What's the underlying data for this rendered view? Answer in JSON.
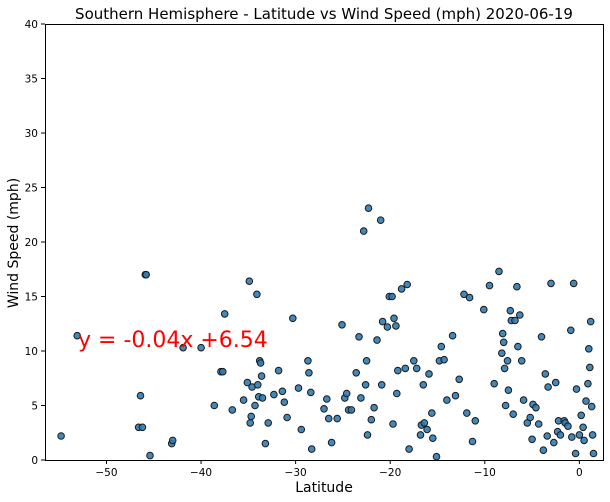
{
  "chart_data": {
    "type": "scatter",
    "title": "Southern Hemisphere - Latitude vs Wind Speed (mph) 2020-06-19",
    "xlabel": "Latitude",
    "ylabel": "Wind Speed (mph)",
    "xlim": [
      -56.5,
      2.5
    ],
    "ylim": [
      0,
      40
    ],
    "xticks": [
      -50,
      -40,
      -30,
      -20,
      -10,
      0
    ],
    "yticks": [
      0,
      5,
      10,
      15,
      20,
      25,
      30,
      35,
      40
    ],
    "grid": false,
    "regression": {
      "equation": "y = -0.04x +6.54",
      "slope": -0.04,
      "intercept": 6.54,
      "color": "#ff0000"
    },
    "point_color": "#2f7bb1",
    "points": [
      [
        -54.8,
        2.2
      ],
      [
        -53.1,
        11.4
      ],
      [
        -46.6,
        3.0
      ],
      [
        -46.4,
        5.9
      ],
      [
        -46.2,
        3.0
      ],
      [
        -45.9,
        17.0
      ],
      [
        -45.8,
        17.0
      ],
      [
        -45.4,
        0.4
      ],
      [
        -43.1,
        1.5
      ],
      [
        -43.0,
        1.8
      ],
      [
        -41.9,
        10.3
      ],
      [
        -40.0,
        10.3
      ],
      [
        -38.6,
        5.0
      ],
      [
        -37.9,
        8.1
      ],
      [
        -37.7,
        8.1
      ],
      [
        -37.5,
        13.4
      ],
      [
        -36.7,
        4.6
      ],
      [
        -35.5,
        5.5
      ],
      [
        -35.1,
        7.1
      ],
      [
        -34.9,
        16.4
      ],
      [
        -34.8,
        3.4
      ],
      [
        -34.7,
        4.0
      ],
      [
        -34.6,
        6.7
      ],
      [
        -34.3,
        5.0
      ],
      [
        -34.1,
        15.2
      ],
      [
        -34.0,
        6.9
      ],
      [
        -33.9,
        5.8
      ],
      [
        -33.8,
        9.1
      ],
      [
        -33.7,
        8.9
      ],
      [
        -33.6,
        7.7
      ],
      [
        -33.5,
        5.7
      ],
      [
        -33.2,
        1.5
      ],
      [
        -32.9,
        3.4
      ],
      [
        -32.3,
        6.0
      ],
      [
        -31.8,
        8.2
      ],
      [
        -31.4,
        6.3
      ],
      [
        -31.2,
        5.3
      ],
      [
        -30.9,
        3.9
      ],
      [
        -30.3,
        13.0
      ],
      [
        -29.7,
        6.6
      ],
      [
        -29.4,
        2.8
      ],
      [
        -28.7,
        9.1
      ],
      [
        -28.6,
        8.0
      ],
      [
        -28.4,
        6.2
      ],
      [
        -28.3,
        1.0
      ],
      [
        -27.0,
        4.7
      ],
      [
        -26.7,
        5.6
      ],
      [
        -26.5,
        3.8
      ],
      [
        -26.2,
        1.6
      ],
      [
        -25.6,
        3.8
      ],
      [
        -25.1,
        12.4
      ],
      [
        -24.8,
        5.7
      ],
      [
        -24.6,
        6.1
      ],
      [
        -24.4,
        4.6
      ],
      [
        -24.1,
        4.6
      ],
      [
        -23.6,
        8.0
      ],
      [
        -23.3,
        11.3
      ],
      [
        -23.1,
        5.7
      ],
      [
        -22.8,
        21.0
      ],
      [
        -22.6,
        6.9
      ],
      [
        -22.5,
        9.1
      ],
      [
        -22.4,
        2.3
      ],
      [
        -22.3,
        23.1
      ],
      [
        -22.0,
        3.7
      ],
      [
        -21.7,
        4.8
      ],
      [
        -21.4,
        11.0
      ],
      [
        -21.0,
        22.0
      ],
      [
        -20.9,
        6.9
      ],
      [
        -20.8,
        12.7
      ],
      [
        -20.3,
        12.2
      ],
      [
        -20.1,
        15.0
      ],
      [
        -19.8,
        15.0
      ],
      [
        -19.7,
        3.3
      ],
      [
        -19.6,
        13.0
      ],
      [
        -19.4,
        12.3
      ],
      [
        -19.3,
        6.1
      ],
      [
        -19.2,
        8.2
      ],
      [
        -18.8,
        15.7
      ],
      [
        -18.4,
        8.4
      ],
      [
        -18.2,
        16.1
      ],
      [
        -18.0,
        1.0
      ],
      [
        -17.5,
        9.1
      ],
      [
        -17.2,
        8.4
      ],
      [
        -16.8,
        2.3
      ],
      [
        -16.7,
        3.2
      ],
      [
        -16.5,
        6.9
      ],
      [
        -16.4,
        3.4
      ],
      [
        -16.1,
        2.8
      ],
      [
        -15.9,
        7.9
      ],
      [
        -15.6,
        4.3
      ],
      [
        -15.5,
        2.0
      ],
      [
        -15.1,
        0.3
      ],
      [
        -14.8,
        9.1
      ],
      [
        -14.6,
        10.4
      ],
      [
        -14.3,
        9.2
      ],
      [
        -14.0,
        5.5
      ],
      [
        -13.4,
        11.4
      ],
      [
        -13.1,
        5.9
      ],
      [
        -12.7,
        7.4
      ],
      [
        -12.2,
        15.2
      ],
      [
        -11.9,
        4.3
      ],
      [
        -11.6,
        14.9
      ],
      [
        -11.3,
        1.7
      ],
      [
        -11.0,
        3.6
      ],
      [
        -10.1,
        13.8
      ],
      [
        -9.5,
        16.0
      ],
      [
        -9.0,
        7.0
      ],
      [
        -8.5,
        17.3
      ],
      [
        -8.2,
        9.8
      ],
      [
        -8.1,
        11.6
      ],
      [
        -8.0,
        10.8
      ],
      [
        -7.9,
        8.4
      ],
      [
        -7.8,
        5.0
      ],
      [
        -7.6,
        9.1
      ],
      [
        -7.5,
        6.4
      ],
      [
        -7.3,
        13.7
      ],
      [
        -7.2,
        12.8
      ],
      [
        -7.0,
        4.2
      ],
      [
        -6.8,
        12.8
      ],
      [
        -6.6,
        15.9
      ],
      [
        -6.5,
        10.4
      ],
      [
        -6.3,
        13.3
      ],
      [
        -6.1,
        9.1
      ],
      [
        -5.9,
        5.5
      ],
      [
        -5.5,
        3.4
      ],
      [
        -5.2,
        3.9
      ],
      [
        -5.0,
        1.9
      ],
      [
        -4.9,
        5.1
      ],
      [
        -4.6,
        4.8
      ],
      [
        -4.3,
        3.3
      ],
      [
        -4.0,
        11.3
      ],
      [
        -3.8,
        0.9
      ],
      [
        -3.6,
        7.9
      ],
      [
        -3.4,
        2.2
      ],
      [
        -3.3,
        6.7
      ],
      [
        -3.0,
        16.2
      ],
      [
        -2.7,
        1.6
      ],
      [
        -2.5,
        7.1
      ],
      [
        -2.3,
        2.6
      ],
      [
        -2.2,
        3.6
      ],
      [
        -2.0,
        2.3
      ],
      [
        -1.6,
        3.6
      ],
      [
        -1.5,
        3.4
      ],
      [
        -1.2,
        3.1
      ],
      [
        -0.9,
        11.9
      ],
      [
        -0.8,
        2.1
      ],
      [
        -0.6,
        16.2
      ],
      [
        -0.4,
        0.6
      ],
      [
        -0.3,
        6.5
      ],
      [
        0.0,
        2.3
      ],
      [
        0.2,
        4.1
      ],
      [
        0.4,
        3.0
      ],
      [
        0.5,
        1.8
      ],
      [
        0.7,
        5.4
      ],
      [
        0.9,
        7.0
      ],
      [
        1.0,
        10.2
      ],
      [
        1.1,
        8.5
      ],
      [
        1.2,
        12.7
      ],
      [
        1.3,
        4.9
      ],
      [
        1.4,
        2.3
      ],
      [
        1.5,
        0.6
      ]
    ]
  }
}
